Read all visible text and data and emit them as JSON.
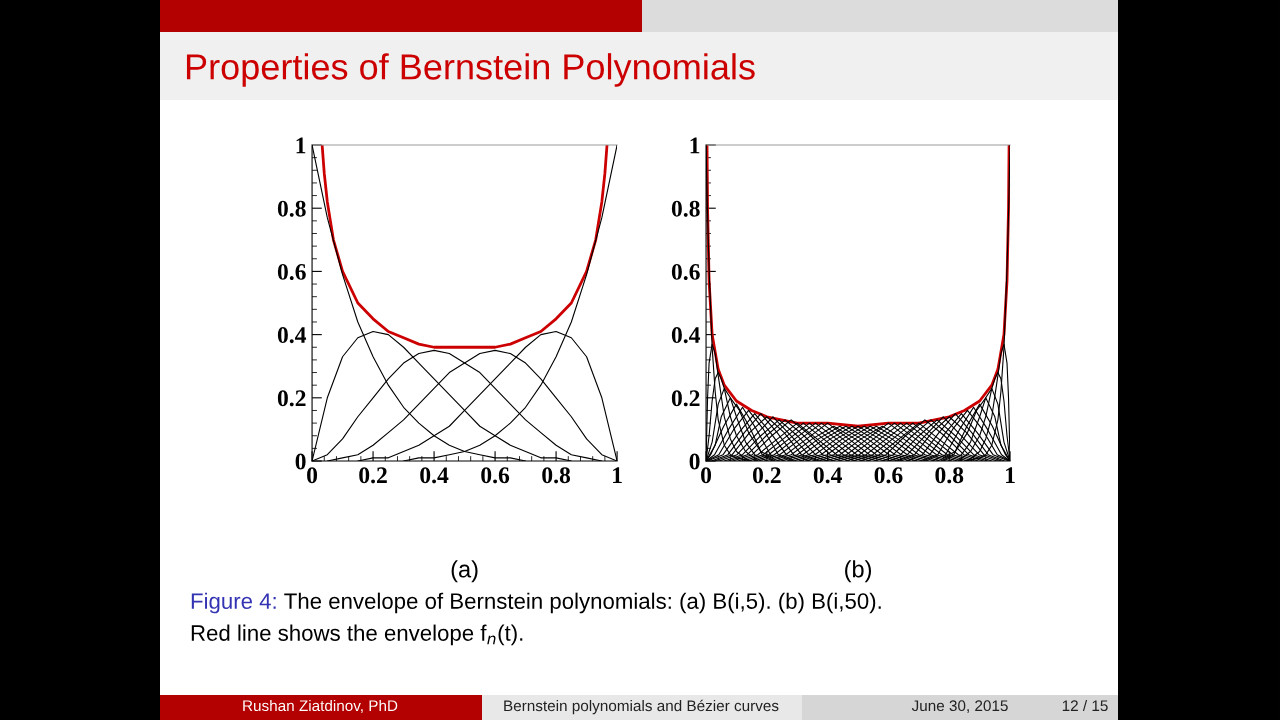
{
  "chart_data": [
    {
      "type": "line",
      "title": "Properties of Bernstein Polynomials",
      "xlabel": "(a)",
      "annotations": [
        "Figure 4:",
        "The envelope of Bernstein polynomials: (a) B(i,5). (b) B(i,50).",
        "Red line shows the envelope f$_{n}$(t).",
        "Rushan Ziatdinov, PhD",
        "Bernstein polynomials and Bézier curves",
        "June 30, 2015",
        "12 / 15"
      ],
      "x": [
        0,
        0.05,
        0.1,
        0.15,
        0.2,
        0.25,
        0.3,
        0.35,
        0.4,
        0.45,
        0.5,
        0.55,
        0.6,
        0.65,
        0.7,
        0.75,
        0.8,
        0.85,
        0.9,
        0.95,
        1
      ],
      "series": [
        {
          "color": "#000000",
          "values": [
            1,
            0.77,
            0.59,
            0.44,
            0.33,
            0.24,
            0.17,
            0.12,
            0.08,
            0.05,
            0.03,
            0.02,
            0.01,
            0.01,
            0,
            null,
            null,
            null,
            null,
            null,
            null
          ]
        },
        {
          "color": "#000000",
          "values": [
            0,
            0.2,
            0.33,
            0.39,
            0.41,
            0.4,
            0.36,
            0.31,
            0.26,
            0.21,
            0.16,
            0.11,
            0.08,
            0.05,
            0.03,
            0.01,
            0.01,
            0,
            null,
            null,
            null
          ]
        },
        {
          "color": "#000000",
          "values": [
            0,
            0.02,
            0.07,
            0.14,
            0.2,
            0.26,
            0.31,
            0.34,
            0.35,
            0.34,
            0.31,
            0.28,
            0.23,
            0.18,
            0.13,
            0.09,
            0.05,
            0.02,
            0.01,
            0,
            null
          ]
        },
        {
          "color": "#000000",
          "values": [
            null,
            0,
            0.01,
            0.02,
            0.05,
            0.09,
            0.13,
            0.18,
            0.23,
            0.28,
            0.31,
            0.34,
            0.35,
            0.34,
            0.31,
            0.26,
            0.2,
            0.14,
            0.07,
            0.02,
            0
          ]
        },
        {
          "color": "#000000",
          "values": [
            null,
            null,
            null,
            0,
            0.01,
            0.01,
            0.03,
            0.05,
            0.08,
            0.11,
            0.16,
            0.21,
            0.26,
            0.31,
            0.36,
            0.4,
            0.41,
            0.39,
            0.33,
            0.2,
            0
          ]
        },
        {
          "color": "#000000",
          "values": [
            null,
            null,
            null,
            null,
            null,
            null,
            0,
            0.01,
            0.01,
            0.02,
            0.03,
            0.05,
            0.08,
            0.12,
            0.17,
            0.24,
            0.33,
            0.44,
            0.59,
            0.77,
            1
          ]
        },
        {
          "color": "#cc0000",
          "x": [
            0.033,
            0.04,
            0.05,
            0.07,
            0.1,
            0.15,
            0.2,
            0.25,
            0.3,
            0.35,
            0.4,
            0.45,
            0.5,
            0.55,
            0.6,
            0.65,
            0.7,
            0.75,
            0.8,
            0.85,
            0.9,
            0.93,
            0.95,
            0.96,
            0.967
          ],
          "values": [
            1,
            0.91,
            0.82,
            0.7,
            0.6,
            0.5,
            0.45,
            0.41,
            0.39,
            0.37,
            0.36,
            0.36,
            0.36,
            0.36,
            0.36,
            0.37,
            0.39,
            0.41,
            0.45,
            0.5,
            0.6,
            0.7,
            0.82,
            0.91,
            1
          ]
        }
      ],
      "xlim": [
        0,
        1
      ],
      "ylim": [
        0,
        1
      ],
      "xticks": [
        0,
        0.2,
        0.4,
        0.6,
        0.8,
        1,
        {
          "value": 0.04,
          "label": null
        },
        {
          "value": 0.08,
          "label": null
        },
        {
          "value": 0.12,
          "label": null
        },
        {
          "value": 0.16,
          "label": null
        },
        {
          "value": 0.24,
          "label": null
        },
        {
          "value": 0.28,
          "label": null
        },
        {
          "value": 0.32,
          "label": null
        },
        {
          "value": 0.36,
          "label": null
        },
        {
          "value": 0.44,
          "label": null
        },
        {
          "value": 0.48,
          "label": null
        },
        {
          "value": 0.52,
          "label": null
        },
        {
          "value": 0.56,
          "label": null
        },
        {
          "value": 0.64,
          "label": null
        },
        {
          "value": 0.68,
          "label": null
        },
        {
          "value": 0.72,
          "label": null
        },
        {
          "value": 0.76,
          "label": null
        },
        {
          "value": 0.84,
          "label": null
        },
        {
          "value": 0.88,
          "label": null
        },
        {
          "value": 0.92,
          "label": null
        },
        {
          "value": 0.96,
          "label": null
        }
      ],
      "yticks": [
        0,
        0.2,
        0.4,
        0.6,
        0.8,
        1,
        {
          "value": 0.04,
          "label": null
        },
        {
          "value": 0.08,
          "label": null
        },
        {
          "value": 0.12,
          "label": null
        },
        {
          "value": 0.16,
          "label": null
        },
        {
          "value": 0.24,
          "label": null
        },
        {
          "value": 0.28,
          "label": null
        },
        {
          "value": 0.32,
          "label": null
        },
        {
          "value": 0.36,
          "label": null
        },
        {
          "value": 0.44,
          "label": null
        },
        {
          "value": 0.48,
          "label": null
        },
        {
          "value": 0.52,
          "label": null
        },
        {
          "value": 0.56,
          "label": null
        },
        {
          "value": 0.64,
          "label": null
        },
        {
          "value": 0.68,
          "label": null
        },
        {
          "value": 0.72,
          "label": null
        },
        {
          "value": 0.76,
          "label": null
        },
        {
          "value": 0.84,
          "label": null
        },
        {
          "value": 0.88,
          "label": null
        },
        {
          "value": 0.92,
          "label": null
        },
        {
          "value": 0.96,
          "label": null
        }
      ]
    },
    {
      "type": "line",
      "xlabel": "(b)",
      "series": [
        {
          "color": "#000000",
          "x": [
            0,
            0.005,
            0.01,
            0.02,
            0.03,
            0.04,
            0.06,
            0.08,
            0.1,
            0.15
          ],
          "values": [
            1,
            0.78,
            0.61,
            0.36,
            0.22,
            0.13,
            0.05,
            0.02,
            0.01,
            0
          ]
        },
        {
          "color": "#000000",
          "x": [
            0,
            0.005,
            0.01,
            0.02,
            0.03,
            0.04,
            0.06,
            0.08,
            0.1,
            0.14
          ],
          "values": [
            0,
            0.2,
            0.31,
            0.37,
            0.34,
            0.27,
            0.14,
            0.07,
            0.03,
            0
          ]
        },
        {
          "color": "#000000",
          "x": [
            0,
            0.01,
            0.02,
            0.03,
            0.04,
            0.05,
            0.06,
            0.08,
            0.1,
            0.13,
            0.17
          ],
          "values": [
            0,
            0.08,
            0.19,
            0.26,
            0.28,
            0.26,
            0.23,
            0.14,
            0.08,
            0.03,
            0
          ]
        },
        {
          "color": "#000000",
          "x": [
            0,
            0.02,
            0.04,
            0.06,
            0.08,
            0.1,
            0.13,
            0.16,
            0.2
          ],
          "values": [
            0,
            0.06,
            0.18,
            0.23,
            0.2,
            0.14,
            0.06,
            0.02,
            0
          ]
        },
        {
          "color": "#000000",
          "x": [
            0,
            0.03,
            0.05,
            0.08,
            0.11,
            0.14,
            0.18,
            0.22
          ],
          "values": [
            0,
            0.05,
            0.14,
            0.2,
            0.16,
            0.09,
            0.03,
            0.01
          ]
        },
        {
          "color": "#000000",
          "x": [
            0,
            0.015,
            0.058,
            0.1,
            0.142,
            0.185,
            0.227
          ],
          "values": [
            0,
            0.02,
            0.11,
            0.18,
            0.11,
            0.02,
            0
          ]
        },
        {
          "color": "#000000",
          "x": [
            0,
            0.028,
            0.074,
            0.12,
            0.166,
            0.212,
            0.258
          ],
          "values": [
            0,
            0.02,
            0.1,
            0.17,
            0.1,
            0.02,
            0
          ]
        },
        {
          "color": "#000000",
          "x": [
            0,
            0.042,
            0.091,
            0.14,
            0.189,
            0.238,
            0.287
          ],
          "values": [
            0,
            0.02,
            0.1,
            0.16,
            0.1,
            0.02,
            0
          ]
        },
        {
          "color": "#000000",
          "x": [
            0.004,
            0.056,
            0.108,
            0.16,
            0.212,
            0.264,
            0.316
          ],
          "values": [
            0,
            0.02,
            0.09,
            0.15,
            0.09,
            0.02,
            0
          ]
        },
        {
          "color": "#000000",
          "x": [
            0.018,
            0.072,
            0.126,
            0.18,
            0.234,
            0.288,
            0.342
          ],
          "values": [
            0,
            0.02,
            0.09,
            0.15,
            0.09,
            0.02,
            0
          ]
        },
        {
          "color": "#000000",
          "x": [
            0.029,
            0.086,
            0.143,
            0.2,
            0.257,
            0.314,
            0.371
          ],
          "values": [
            0,
            0.02,
            0.09,
            0.14,
            0.09,
            0.02,
            0
          ]
        },
        {
          "color": "#000000",
          "x": [
            0.043,
            0.102,
            0.161,
            0.22,
            0.279,
            0.338,
            0.397
          ],
          "values": [
            0,
            0.02,
            0.08,
            0.14,
            0.08,
            0.02,
            0
          ]
        },
        {
          "color": "#000000",
          "x": [
            0.06,
            0.12,
            0.18,
            0.24,
            0.3,
            0.36,
            0.42
          ],
          "values": [
            0,
            0.02,
            0.08,
            0.13,
            0.08,
            0.02,
            0
          ]
        },
        {
          "color": "#000000",
          "x": [
            0.074,
            0.136,
            0.198,
            0.26,
            0.322,
            0.384,
            0.446
          ],
          "values": [
            0,
            0.02,
            0.08,
            0.13,
            0.08,
            0.02,
            0
          ]
        },
        {
          "color": "#000000",
          "x": [
            0.088,
            0.152,
            0.216,
            0.28,
            0.344,
            0.408,
            0.472
          ],
          "values": [
            0,
            0.02,
            0.08,
            0.13,
            0.08,
            0.02,
            0
          ]
        },
        {
          "color": "#000000",
          "x": [
            0.105,
            0.17,
            0.235,
            0.3,
            0.365,
            0.43,
            0.495
          ],
          "values": [
            0,
            0.02,
            0.07,
            0.12,
            0.07,
            0.02,
            0
          ]
        },
        {
          "color": "#000000",
          "x": [
            0.122,
            0.188,
            0.254,
            0.32,
            0.386,
            0.452,
            0.518
          ],
          "values": [
            0,
            0.02,
            0.07,
            0.12,
            0.07,
            0.02,
            0
          ]
        },
        {
          "color": "#000000",
          "x": [
            0.139,
            0.206,
            0.273,
            0.34,
            0.407,
            0.474,
            0.541
          ],
          "values": [
            0,
            0.02,
            0.07,
            0.12,
            0.07,
            0.02,
            0
          ]
        },
        {
          "color": "#000000",
          "x": [
            0.156,
            0.224,
            0.292,
            0.36,
            0.428,
            0.496,
            0.564
          ],
          "values": [
            0,
            0.02,
            0.07,
            0.12,
            0.07,
            0.02,
            0
          ]
        },
        {
          "color": "#000000",
          "x": [
            0.173,
            0.242,
            0.311,
            0.38,
            0.449,
            0.518,
            0.587
          ],
          "values": [
            0,
            0.02,
            0.07,
            0.12,
            0.07,
            0.02,
            0
          ]
        },
        {
          "color": "#000000",
          "x": [
            0.193,
            0.262,
            0.331,
            0.4,
            0.469,
            0.538,
            0.607
          ],
          "values": [
            0,
            0.02,
            0.07,
            0.12,
            0.07,
            0.02,
            0
          ]
        },
        {
          "color": "#000000",
          "x": [
            0.21,
            0.28,
            0.35,
            0.42,
            0.49,
            0.56,
            0.63
          ],
          "values": [
            0,
            0.02,
            0.07,
            0.11,
            0.07,
            0.02,
            0
          ]
        },
        {
          "color": "#000000",
          "x": [
            0.23,
            0.3,
            0.37,
            0.44,
            0.51,
            0.58,
            0.65
          ],
          "values": [
            0,
            0.02,
            0.07,
            0.11,
            0.07,
            0.02,
            0
          ]
        },
        {
          "color": "#000000",
          "x": [
            0.247,
            0.318,
            0.389,
            0.46,
            0.531,
            0.602,
            0.673
          ],
          "values": [
            0,
            0.02,
            0.07,
            0.11,
            0.07,
            0.02,
            0
          ]
        },
        {
          "color": "#000000",
          "x": [
            0.267,
            0.338,
            0.409,
            0.48,
            0.551,
            0.622,
            0.693
          ],
          "values": [
            0,
            0.02,
            0.07,
            0.11,
            0.07,
            0.02,
            0
          ]
        },
        {
          "color": "#000000",
          "x": [
            0.287,
            0.358,
            0.429,
            0.5,
            0.571,
            0.642,
            0.713
          ],
          "values": [
            0,
            0.02,
            0.07,
            0.11,
            0.07,
            0.02,
            0
          ]
        },
        {
          "color": "#000000",
          "x": [
            0.307,
            0.378,
            0.449,
            0.52,
            0.591,
            0.662,
            0.733
          ],
          "values": [
            0,
            0.02,
            0.07,
            0.11,
            0.07,
            0.02,
            0
          ]
        },
        {
          "color": "#000000",
          "x": [
            0.327,
            0.398,
            0.469,
            0.54,
            0.611,
            0.682,
            0.753
          ],
          "values": [
            0,
            0.02,
            0.07,
            0.11,
            0.07,
            0.02,
            0
          ]
        },
        {
          "color": "#000000",
          "x": [
            0.35,
            0.42,
            0.49,
            0.56,
            0.63,
            0.7,
            0.77
          ],
          "values": [
            0,
            0.02,
            0.07,
            0.11,
            0.07,
            0.02,
            0
          ]
        },
        {
          "color": "#000000",
          "x": [
            0.37,
            0.44,
            0.51,
            0.58,
            0.65,
            0.72,
            0.79
          ],
          "values": [
            0,
            0.02,
            0.07,
            0.11,
            0.07,
            0.02,
            0
          ]
        },
        {
          "color": "#000000",
          "x": [
            0.393,
            0.462,
            0.531,
            0.6,
            0.669,
            0.738,
            0.807
          ],
          "values": [
            0,
            0.02,
            0.07,
            0.12,
            0.07,
            0.02,
            0
          ]
        },
        {
          "color": "#000000",
          "x": [
            0.413,
            0.482,
            0.551,
            0.62,
            0.689,
            0.758,
            0.827
          ],
          "values": [
            0,
            0.02,
            0.07,
            0.12,
            0.07,
            0.02,
            0
          ]
        },
        {
          "color": "#000000",
          "x": [
            0.436,
            0.504,
            0.572,
            0.64,
            0.708,
            0.776,
            0.844
          ],
          "values": [
            0,
            0.02,
            0.07,
            0.12,
            0.07,
            0.02,
            0
          ]
        },
        {
          "color": "#000000",
          "x": [
            0.459,
            0.526,
            0.593,
            0.66,
            0.727,
            0.794,
            0.861
          ],
          "values": [
            0,
            0.02,
            0.07,
            0.12,
            0.07,
            0.02,
            0
          ]
        },
        {
          "color": "#000000",
          "x": [
            0.482,
            0.548,
            0.614,
            0.68,
            0.746,
            0.812,
            0.878
          ],
          "values": [
            0,
            0.02,
            0.07,
            0.12,
            0.07,
            0.02,
            0
          ]
        },
        {
          "color": "#000000",
          "x": [
            0.505,
            0.57,
            0.635,
            0.7,
            0.765,
            0.83,
            0.895
          ],
          "values": [
            0,
            0.02,
            0.07,
            0.12,
            0.07,
            0.02,
            0
          ]
        },
        {
          "color": "#000000",
          "x": [
            0.528,
            0.592,
            0.656,
            0.72,
            0.784,
            0.848,
            0.912
          ],
          "values": [
            0,
            0.02,
            0.08,
            0.13,
            0.08,
            0.02,
            0
          ]
        },
        {
          "color": "#000000",
          "x": [
            0.554,
            0.616,
            0.678,
            0.74,
            0.802,
            0.864,
            0.926
          ],
          "values": [
            0,
            0.02,
            0.08,
            0.13,
            0.08,
            0.02,
            0
          ]
        },
        {
          "color": "#000000",
          "x": [
            0.58,
            0.64,
            0.7,
            0.76,
            0.82,
            0.88,
            0.94
          ],
          "values": [
            0,
            0.02,
            0.08,
            0.13,
            0.08,
            0.02,
            0
          ]
        },
        {
          "color": "#000000",
          "x": [
            0.603,
            0.662,
            0.721,
            0.78,
            0.839,
            0.898,
            0.957
          ],
          "values": [
            0,
            0.02,
            0.08,
            0.14,
            0.08,
            0.02,
            0
          ]
        },
        {
          "color": "#000000",
          "x": [
            0.629,
            0.686,
            0.743,
            0.8,
            0.857,
            0.914,
            0.971
          ],
          "values": [
            0,
            0.02,
            0.09,
            0.14,
            0.09,
            0.02,
            0
          ]
        },
        {
          "color": "#000000",
          "x": [
            0.658,
            0.712,
            0.766,
            0.82,
            0.874,
            0.928,
            0.982
          ],
          "values": [
            0,
            0.02,
            0.09,
            0.15,
            0.09,
            0.02,
            0
          ]
        },
        {
          "color": "#000000",
          "x": [
            0.684,
            0.736,
            0.788,
            0.84,
            0.892,
            0.944,
            0.996
          ],
          "values": [
            0,
            0.02,
            0.09,
            0.15,
            0.09,
            0.02,
            0
          ]
        },
        {
          "color": "#000000",
          "x": [
            0.713,
            0.762,
            0.811,
            0.86,
            0.909,
            0.958,
            1
          ],
          "values": [
            0,
            0.02,
            0.1,
            0.16,
            0.1,
            0.02,
            0
          ]
        },
        {
          "color": "#000000",
          "x": [
            0.742,
            0.788,
            0.834,
            0.88,
            0.926,
            0.972,
            1
          ],
          "values": [
            0,
            0.02,
            0.1,
            0.17,
            0.1,
            0.02,
            0
          ]
        },
        {
          "color": "#000000",
          "x": [
            0.773,
            0.815,
            0.858,
            0.9,
            0.942,
            0.985,
            1
          ],
          "values": [
            0,
            0.02,
            0.11,
            0.18,
            0.11,
            0.02,
            0
          ]
        },
        {
          "color": "#000000",
          "x": [
            0.78,
            0.82,
            0.86,
            0.89,
            0.92,
            0.95,
            0.97,
            1
          ],
          "values": [
            0.01,
            0.03,
            0.09,
            0.16,
            0.2,
            0.14,
            0.05,
            0
          ]
        },
        {
          "color": "#000000",
          "x": [
            0.8,
            0.84,
            0.87,
            0.9,
            0.92,
            0.94,
            0.96,
            0.98,
            1
          ],
          "values": [
            0,
            0.02,
            0.06,
            0.14,
            0.2,
            0.23,
            0.18,
            0.06,
            0
          ]
        },
        {
          "color": "#000000",
          "x": [
            0.83,
            0.87,
            0.9,
            0.92,
            0.94,
            0.95,
            0.96,
            0.97,
            0.98,
            0.99,
            1
          ],
          "values": [
            0,
            0.03,
            0.08,
            0.14,
            0.23,
            0.26,
            0.28,
            0.26,
            0.19,
            0.08,
            0
          ]
        },
        {
          "color": "#000000",
          "x": [
            0.86,
            0.9,
            0.92,
            0.94,
            0.96,
            0.97,
            0.98,
            0.99,
            0.995,
            1
          ],
          "values": [
            0,
            0.03,
            0.07,
            0.14,
            0.27,
            0.34,
            0.37,
            0.31,
            0.2,
            0
          ]
        },
        {
          "color": "#000000",
          "x": [
            0.85,
            0.9,
            0.92,
            0.94,
            0.96,
            0.97,
            0.98,
            0.99,
            0.995,
            1
          ],
          "values": [
            0,
            0.01,
            0.02,
            0.05,
            0.13,
            0.22,
            0.36,
            0.61,
            0.78,
            1
          ]
        },
        {
          "color": "#cc0000",
          "x": [
            0.0032,
            0.005,
            0.01,
            0.02,
            0.04,
            0.06,
            0.1,
            0.15,
            0.2,
            0.3,
            0.4,
            0.5,
            0.6,
            0.7,
            0.8,
            0.85,
            0.9,
            0.94,
            0.96,
            0.98,
            0.99,
            0.995,
            0.9968
          ],
          "values": [
            1,
            0.8,
            0.57,
            0.4,
            0.29,
            0.24,
            0.19,
            0.16,
            0.14,
            0.12,
            0.12,
            0.11,
            0.12,
            0.12,
            0.14,
            0.16,
            0.19,
            0.24,
            0.29,
            0.4,
            0.57,
            0.8,
            1
          ]
        }
      ],
      "xlim": [
        0,
        1
      ],
      "ylim": [
        0,
        1
      ],
      "xticks": [
        0,
        0.2,
        0.4,
        0.6,
        0.8,
        1,
        {
          "value": 0.04,
          "label": null
        },
        {
          "value": 0.08,
          "label": null
        },
        {
          "value": 0.12,
          "label": null
        },
        {
          "value": 0.16,
          "label": null
        },
        {
          "value": 0.24,
          "label": null
        },
        {
          "value": 0.28,
          "label": null
        },
        {
          "value": 0.32,
          "label": null
        },
        {
          "value": 0.36,
          "label": null
        },
        {
          "value": 0.44,
          "label": null
        },
        {
          "value": 0.48,
          "label": null
        },
        {
          "value": 0.52,
          "label": null
        },
        {
          "value": 0.56,
          "label": null
        },
        {
          "value": 0.64,
          "label": null
        },
        {
          "value": 0.68,
          "label": null
        },
        {
          "value": 0.72,
          "label": null
        },
        {
          "value": 0.76,
          "label": null
        },
        {
          "value": 0.84,
          "label": null
        },
        {
          "value": 0.88,
          "label": null
        },
        {
          "value": 0.92,
          "label": null
        },
        {
          "value": 0.96,
          "label": null
        }
      ],
      "yticks": [
        0,
        0.2,
        0.4,
        0.6,
        0.8,
        1,
        {
          "value": 0.04,
          "label": null
        },
        {
          "value": 0.08,
          "label": null
        },
        {
          "value": 0.12,
          "label": null
        },
        {
          "value": 0.16,
          "label": null
        },
        {
          "value": 0.24,
          "label": null
        },
        {
          "value": 0.28,
          "label": null
        },
        {
          "value": 0.32,
          "label": null
        },
        {
          "value": 0.36,
          "label": null
        },
        {
          "value": 0.44,
          "label": null
        },
        {
          "value": 0.48,
          "label": null
        },
        {
          "value": 0.52,
          "label": null
        },
        {
          "value": 0.56,
          "label": null
        },
        {
          "value": 0.64,
          "label": null
        },
        {
          "value": 0.68,
          "label": null
        },
        {
          "value": 0.72,
          "label": null
        },
        {
          "value": 0.76,
          "label": null
        },
        {
          "value": 0.84,
          "label": null
        },
        {
          "value": 0.88,
          "label": null
        },
        {
          "value": 0.92,
          "label": null
        },
        {
          "value": 0.96,
          "label": null
        }
      ]
    }
  ]
}
